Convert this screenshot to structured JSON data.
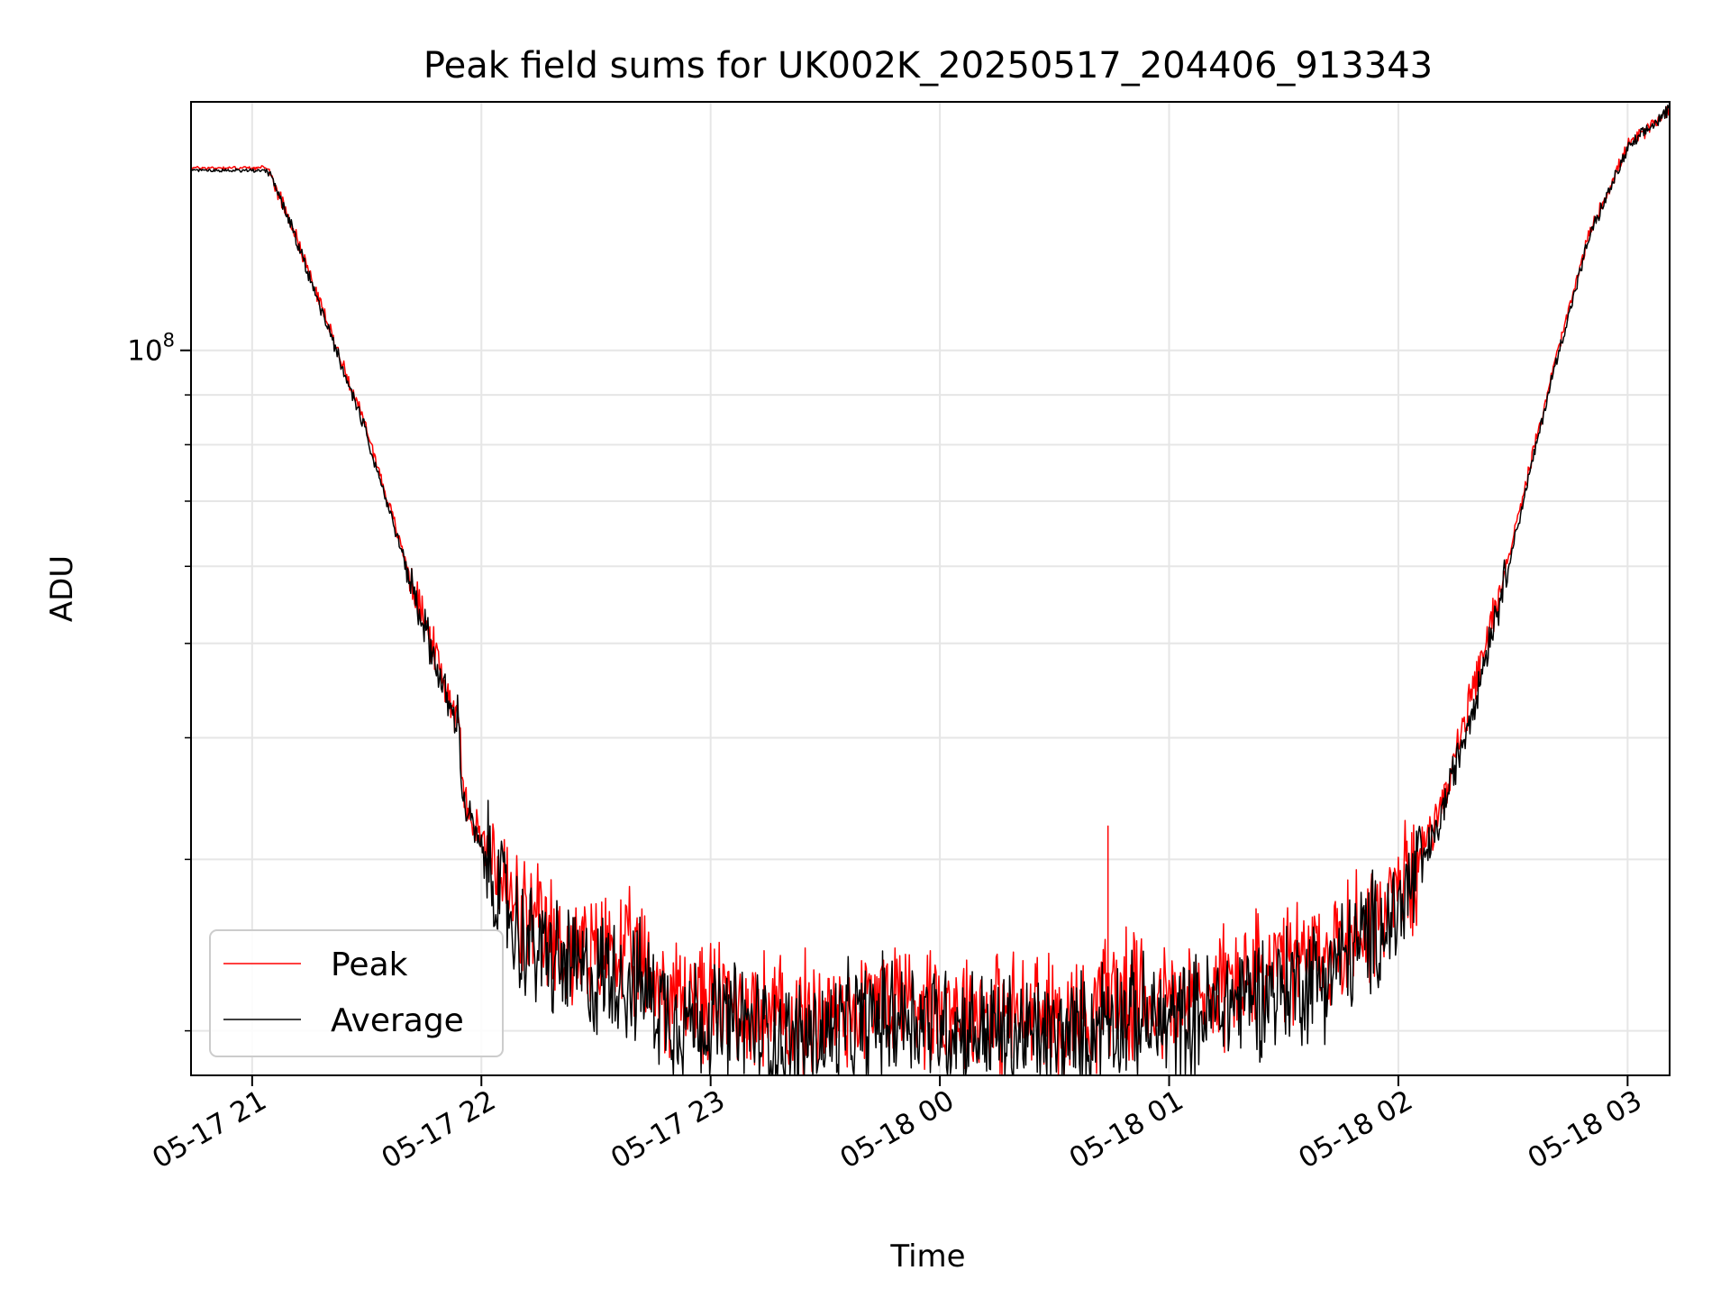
{
  "chart_data": {
    "type": "line",
    "title": "Peak field sums for UK002K_20250517_204406_913343",
    "xlabel": "Time",
    "ylabel": "ADU",
    "y_scale": "log",
    "ylim": [
      18000000,
      180000000
    ],
    "xlim": [
      "2025-05-17 20:44",
      "2025-05-18 03:11"
    ],
    "x_ticks": [
      {
        "t": "2025-05-17 21:00",
        "label": "05-17 21"
      },
      {
        "t": "2025-05-17 22:00",
        "label": "05-17 22"
      },
      {
        "t": "2025-05-17 23:00",
        "label": "05-17 23"
      },
      {
        "t": "2025-05-18 00:00",
        "label": "05-18 00"
      },
      {
        "t": "2025-05-18 01:00",
        "label": "05-18 01"
      },
      {
        "t": "2025-05-18 02:00",
        "label": "05-18 02"
      },
      {
        "t": "2025-05-18 03:00",
        "label": "05-18 03"
      }
    ],
    "y_major_tick": {
      "value": 100000000,
      "label_base": "10",
      "label_exp": "8"
    },
    "y_minor_ticks": [
      20000000,
      30000000,
      40000000,
      50000000,
      60000000,
      70000000,
      80000000,
      90000000
    ],
    "grid": true,
    "legend_position": "lower-left",
    "series": [
      {
        "name": "Peak",
        "color": "#ff0000",
        "points": [
          [
            "2025-05-17 20:44",
            154000000
          ],
          [
            "2025-05-17 21:04",
            154000000
          ],
          [
            "2025-05-17 21:10",
            136000000
          ],
          [
            "2025-05-17 21:20",
            106000000
          ],
          [
            "2025-05-17 21:30",
            83000000
          ],
          [
            "2025-05-17 21:40",
            61000000
          ],
          [
            "2025-05-17 21:50",
            46000000
          ],
          [
            "2025-05-17 21:53",
            42500000
          ],
          [
            "2025-05-17 21:54",
            43500000
          ],
          [
            "2025-05-17 21:55",
            35500000
          ],
          [
            "2025-05-17 22:00",
            31500000
          ],
          [
            "2025-05-17 22:10",
            26000000
          ],
          [
            "2025-05-17 22:20",
            24500000
          ],
          [
            "2025-05-17 22:30",
            23500000
          ],
          [
            "2025-05-17 22:33",
            24500000
          ],
          [
            "2025-05-17 22:40",
            23500000
          ],
          [
            "2025-05-17 22:50",
            21800000
          ],
          [
            "2025-05-17 23:00",
            21500000
          ],
          [
            "2025-05-17 23:10",
            21200000
          ],
          [
            "2025-05-17 23:20",
            20500000
          ],
          [
            "2025-05-17 23:30",
            20800000
          ],
          [
            "2025-05-17 23:40",
            21200000
          ],
          [
            "2025-05-17 23:50",
            21800000
          ],
          [
            "2025-05-18 00:00",
            21300000
          ],
          [
            "2025-05-18 00:10",
            21000000
          ],
          [
            "2025-05-18 00:20",
            20800000
          ],
          [
            "2025-05-18 00:30",
            20600000
          ],
          [
            "2025-05-18 00:40",
            20800000
          ],
          [
            "2025-05-18 00:43",
            22500000
          ],
          [
            "2025-05-18 00:45",
            21900000
          ],
          [
            "2025-05-18 00:50",
            21600000
          ],
          [
            "2025-05-18 01:00",
            21300000
          ],
          [
            "2025-05-18 01:10",
            21800000
          ],
          [
            "2025-05-18 01:20",
            22800000
          ],
          [
            "2025-05-18 01:30",
            23200000
          ],
          [
            "2025-05-18 01:40",
            23800000
          ],
          [
            "2025-05-18 01:50",
            25500000
          ],
          [
            "2025-05-18 02:00",
            27500000
          ],
          [
            "2025-05-18 02:10",
            33000000
          ],
          [
            "2025-05-18 02:20",
            45000000
          ],
          [
            "2025-05-18 02:30",
            64000000
          ],
          [
            "2025-05-18 02:40",
            94000000
          ],
          [
            "2025-05-18 02:50",
            132000000
          ],
          [
            "2025-05-18 03:00",
            162000000
          ],
          [
            "2025-05-18 03:11",
            177000000
          ]
        ]
      },
      {
        "name": "Average",
        "color": "#000000",
        "points": [
          [
            "2025-05-17 20:44",
            153000000
          ],
          [
            "2025-05-17 21:04",
            153000000
          ],
          [
            "2025-05-17 21:10",
            135000000
          ],
          [
            "2025-05-17 21:20",
            105000000
          ],
          [
            "2025-05-17 21:30",
            82000000
          ],
          [
            "2025-05-17 21:40",
            60500000
          ],
          [
            "2025-05-17 21:50",
            45000000
          ],
          [
            "2025-05-17 21:53",
            41500000
          ],
          [
            "2025-05-17 21:54",
            42500000
          ],
          [
            "2025-05-17 21:55",
            34800000
          ],
          [
            "2025-05-17 22:00",
            30500000
          ],
          [
            "2025-05-17 22:10",
            25000000
          ],
          [
            "2025-05-17 22:20",
            23500000
          ],
          [
            "2025-05-17 22:30",
            22500000
          ],
          [
            "2025-05-17 22:33",
            23200000
          ],
          [
            "2025-05-17 22:40",
            22500000
          ],
          [
            "2025-05-17 22:50",
            20800000
          ],
          [
            "2025-05-17 23:00",
            20500000
          ],
          [
            "2025-05-17 23:10",
            20200000
          ],
          [
            "2025-05-17 23:20",
            19400000
          ],
          [
            "2025-05-17 23:30",
            19800000
          ],
          [
            "2025-05-17 23:40",
            20300000
          ],
          [
            "2025-05-17 23:50",
            20900000
          ],
          [
            "2025-05-18 00:00",
            20400000
          ],
          [
            "2025-05-18 00:10",
            20000000
          ],
          [
            "2025-05-18 00:20",
            19800000
          ],
          [
            "2025-05-18 00:30",
            19600000
          ],
          [
            "2025-05-18 00:40",
            19800000
          ],
          [
            "2025-05-18 00:43",
            21000000
          ],
          [
            "2025-05-18 00:45",
            20900000
          ],
          [
            "2025-05-18 00:50",
            20600000
          ],
          [
            "2025-05-18 01:00",
            20300000
          ],
          [
            "2025-05-18 01:10",
            20800000
          ],
          [
            "2025-05-18 01:20",
            21800000
          ],
          [
            "2025-05-18 01:30",
            22200000
          ],
          [
            "2025-05-18 01:40",
            22800000
          ],
          [
            "2025-05-18 01:50",
            24500000
          ],
          [
            "2025-05-18 02:00",
            26500000
          ],
          [
            "2025-05-18 02:10",
            32000000
          ],
          [
            "2025-05-18 02:20",
            44000000
          ],
          [
            "2025-05-18 02:30",
            63000000
          ],
          [
            "2025-05-18 02:40",
            93000000
          ],
          [
            "2025-05-18 02:50",
            131000000
          ],
          [
            "2025-05-18 03:00",
            161000000
          ],
          [
            "2025-05-18 03:11",
            177000000
          ]
        ]
      }
    ],
    "annotations": [
      {
        "series": "Peak",
        "time": "2025-05-18 00:44",
        "value": 32500000
      }
    ]
  }
}
